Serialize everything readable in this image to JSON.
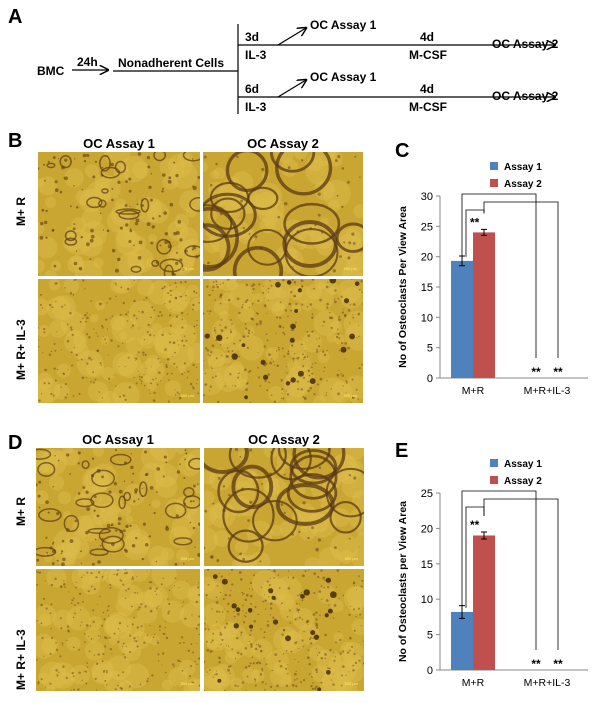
{
  "panels": {
    "a": "A",
    "b": "B",
    "c": "C",
    "d": "D",
    "e": "E"
  },
  "schematic": {
    "start": "BMC",
    "first_arrow": "24h",
    "cells": "Nonadherent Cells",
    "branch1_time": "3d",
    "branch1_factor": "IL-3",
    "branch2_time": "6d",
    "branch2_factor": "IL-3",
    "assay1": "OC Assay 1",
    "assay2": "OC Assay 2",
    "second_time": "4d",
    "second_factor": "M-CSF"
  },
  "micrographs": {
    "col1": "OC Assay 1",
    "col2": "OC Assay 2",
    "row1": "M+ R",
    "row2": "M+ R+ IL-3",
    "scale": "500 μm",
    "colors": {
      "base": "#c9a531",
      "light": "#dcbc49",
      "dark": "#5a3a14"
    }
  },
  "chart_data": [
    {
      "type": "bar",
      "panel": "C",
      "categories": [
        "M+R",
        "M+R+IL-3"
      ],
      "series": [
        {
          "name": "Assay 1",
          "values": [
            19.3,
            0
          ],
          "errors": [
            0.8,
            0
          ],
          "color": "#4f81bd"
        },
        {
          "name": "Assay 2",
          "values": [
            24.0,
            0
          ],
          "errors": [
            0.5,
            0
          ],
          "color": "#c0504d"
        }
      ],
      "ylabel": "No of Osteoclasts Per View Area",
      "ylim": [
        0,
        30
      ],
      "yticks": [
        0,
        5,
        10,
        15,
        20,
        25,
        30
      ],
      "significance": "**",
      "grid": false,
      "legend": "top"
    },
    {
      "type": "bar",
      "panel": "E",
      "categories": [
        "M+R",
        "M+R+IL-3"
      ],
      "series": [
        {
          "name": "Assay 1",
          "values": [
            8.2,
            0
          ],
          "errors": [
            0.9,
            0
          ],
          "color": "#4f81bd"
        },
        {
          "name": "Assay 2",
          "values": [
            19.0,
            0
          ],
          "errors": [
            0.5,
            0
          ],
          "color": "#c0504d"
        }
      ],
      "ylabel": "No of Osteoclasts per View Area",
      "ylim": [
        0,
        25
      ],
      "yticks": [
        0,
        5,
        10,
        15,
        20,
        25
      ],
      "significance": "**",
      "grid": false,
      "legend": "top"
    }
  ]
}
